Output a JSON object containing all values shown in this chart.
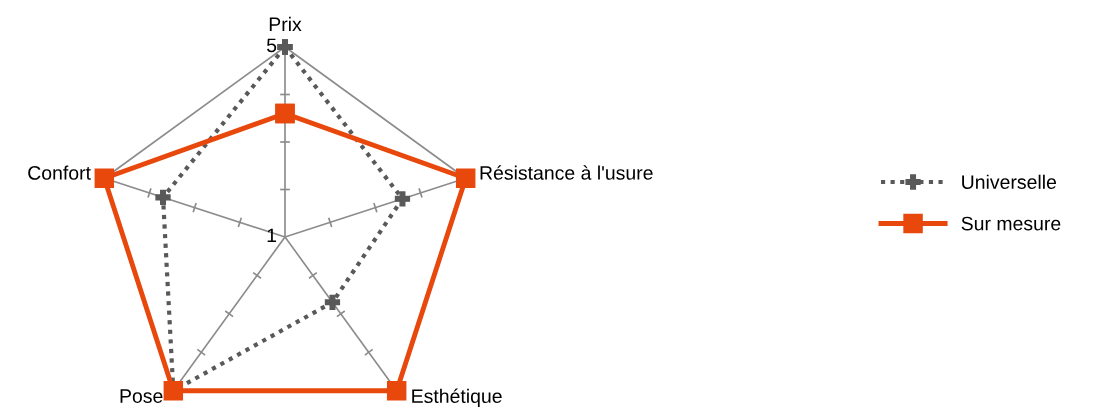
{
  "chart_data": {
    "type": "radar",
    "categories": [
      "Prix",
      "Résistance à l'usure",
      "Esthétique",
      "Pose",
      "Confort"
    ],
    "ylim": [
      1,
      5
    ],
    "yticks": [
      1,
      5
    ],
    "grid": "x",
    "legend": "right",
    "series": [
      {
        "name": "Universelle",
        "color": "#595959",
        "values": [
          5,
          3.6,
          2.7,
          5,
          3.7
        ],
        "marker": "cross",
        "line_style": "dotted"
      },
      {
        "name": "Sur mesure",
        "color": "#e8480c",
        "values": [
          3.6,
          5,
          5,
          5,
          5
        ],
        "marker": "square",
        "line_style": "solid"
      }
    ]
  }
}
